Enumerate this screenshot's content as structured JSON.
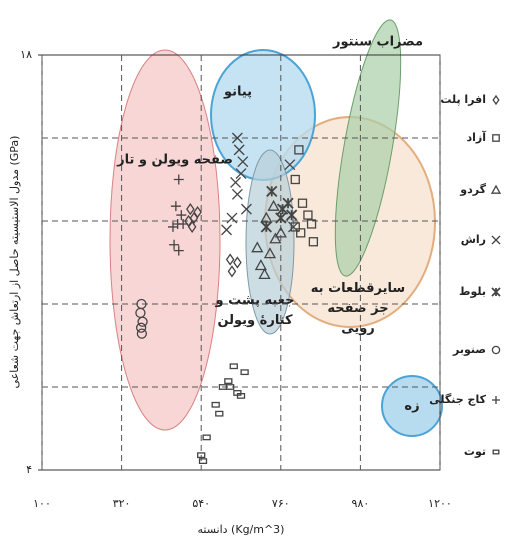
{
  "chart_data": {
    "type": "scatter",
    "xlabel": "دانسته (Kg/m^3)",
    "ylabel": "مدول الاستیسیته حاصل از ارتعاش جهت شعاعی (GPa)",
    "xlim": [
      100,
      1200
    ],
    "xticks": [
      {
        "value": 100,
        "label": "۱۰۰"
      },
      {
        "value": 320,
        "label": "۳۲۰"
      },
      {
        "value": 540,
        "label": "۵۴۰"
      },
      {
        "value": 760,
        "label": "۷۶۰"
      },
      {
        "value": 980,
        "label": "۹۸۰"
      },
      {
        "value": 1200,
        "label": "۱۲۰۰"
      }
    ],
    "ylim": [
      4,
      18
    ],
    "yticks": [
      {
        "value": 4,
        "label": "۴"
      },
      {
        "value": 18,
        "label": "۱۸"
      }
    ],
    "ygrid": [
      6.8,
      9.6,
      12.4,
      15.2
    ],
    "grid": true,
    "annotations": [
      "صفحه ویولن و تار",
      "پیانو",
      "مضراب سنتور",
      "سایرقطعات به جز صفحه رویی",
      "جعبه پشت و کنارهٔ ویولن",
      "زه"
    ],
    "series": [
      {
        "name": "افرا پلت",
        "marker": "diamond",
        "color": "#444",
        "x": [
          510,
          520,
          515,
          530,
          505,
          620,
          625,
          640
        ],
        "values": [
          12.8,
          12.5,
          12.2,
          12.7,
          12.4,
          11.1,
          10.7,
          11.0
        ]
      },
      {
        "name": "آزاد",
        "marker": "square",
        "color": "#444",
        "x": [
          810,
          800,
          820,
          835,
          845,
          815,
          850,
          800
        ],
        "values": [
          14.8,
          13.8,
          13.0,
          12.6,
          12.3,
          12.0,
          11.7,
          12.2
        ]
      },
      {
        "name": "گردو",
        "marker": "triangle",
        "color": "#444",
        "x": [
          695,
          720,
          740,
          705,
          730,
          745,
          760,
          715
        ],
        "values": [
          11.5,
          12.5,
          12.9,
          10.9,
          11.3,
          11.8,
          12.0,
          10.6
        ]
      },
      {
        "name": "راش",
        "marker": "cross",
        "color": "#444",
        "x": [
          640,
          645,
          655,
          650,
          635,
          640,
          625,
          610,
          665,
          785,
          795
        ],
        "values": [
          15.2,
          14.8,
          14.4,
          14.0,
          13.7,
          13.3,
          12.5,
          12.1,
          12.8,
          14.3,
          12.2
        ]
      },
      {
        "name": "بلوط",
        "marker": "asterisk",
        "color": "#444",
        "x": [
          735,
          765,
          780,
          790,
          720,
          760
        ],
        "values": [
          13.4,
          12.8,
          13.0,
          12.6,
          12.2,
          12.5
        ]
      },
      {
        "name": "صنوبر",
        "marker": "circle",
        "color": "#444",
        "x": [
          375,
          372,
          378,
          374,
          376
        ],
        "values": [
          9.6,
          9.3,
          9.0,
          8.8,
          8.6
        ]
      },
      {
        "name": "کاج جنگلی",
        "marker": "plus",
        "color": "#444",
        "x": [
          478,
          470,
          485,
          462,
          475,
          490,
          465,
          478
        ],
        "values": [
          13.8,
          12.9,
          12.6,
          12.2,
          12.3,
          12.3,
          11.6,
          11.4
        ]
      },
      {
        "name": "توت",
        "marker": "smallsquare",
        "color": "#444",
        "x": [
          545,
          540,
          555,
          590,
          600,
          615,
          620,
          640,
          650,
          660,
          630,
          580
        ],
        "values": [
          4.3,
          4.5,
          5.1,
          5.9,
          6.8,
          7.0,
          6.8,
          6.6,
          6.5,
          7.3,
          7.5,
          6.2
        ]
      }
    ]
  }
}
